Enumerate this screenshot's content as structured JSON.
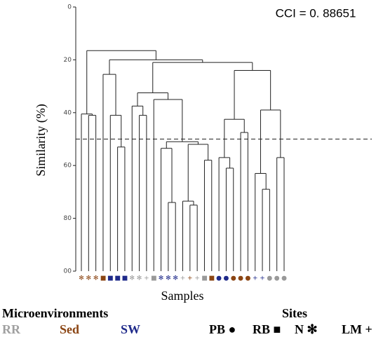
{
  "chart_data": {
    "type": "dendrogram",
    "annotation": "CCI = 0. 88651",
    "y_label": "Similarity (%)",
    "x_label": "Samples",
    "ylim": [
      0,
      100
    ],
    "yticks": [
      0,
      20,
      40,
      60,
      80,
      {
        "value": 100,
        "label": "00"
      }
    ],
    "threshold": 50,
    "tree": {
      "height": 16.5,
      "children": [
        {
          "height": 40.5,
          "children": [
            {
              "symbol": "✻",
              "color": "#8b4513"
            },
            {
              "height": 41,
              "children": [
                {
                  "symbol": "✻",
                  "color": "#8b4513"
                },
                {
                  "symbol": "✻",
                  "color": "#8b4513"
                }
              ]
            }
          ]
        },
        {
          "height": 20,
          "children": [
            {
              "height": 25.5,
              "children": [
                {
                  "symbol": "■",
                  "color": "#8b4513"
                },
                {
                  "height": 41,
                  "children": [
                    {
                      "symbol": "■",
                      "color": "#1f2a8a"
                    },
                    {
                      "height": 53,
                      "children": [
                        {
                          "symbol": "■",
                          "color": "#1f2a8a"
                        },
                        {
                          "symbol": "■",
                          "color": "#1f2a8a"
                        }
                      ]
                    }
                  ]
                }
              ]
            },
            {
              "height": 21,
              "children": [
                {
                  "height": 32.5,
                  "children": [
                    {
                      "height": 37.5,
                      "children": [
                        {
                          "symbol": "✻",
                          "color": "#999999"
                        },
                        {
                          "height": 41,
                          "children": [
                            {
                              "symbol": "✻",
                              "color": "#999999"
                            },
                            {
                              "symbol": "+",
                              "color": "#999999"
                            }
                          ]
                        }
                      ]
                    },
                    {
                      "height": 35,
                      "children": [
                        {
                          "symbol": "■",
                          "color": "#999999"
                        },
                        {
                          "height": 51,
                          "children": [
                            {
                              "height": 53.5,
                              "children": [
                                {
                                  "symbol": "✻",
                                  "color": "#1f2a8a"
                                },
                                {
                                  "height": 74,
                                  "children": [
                                    {
                                      "symbol": "✻",
                                      "color": "#1f2a8a"
                                    },
                                    {
                                      "symbol": "✻",
                                      "color": "#1f2a8a"
                                    }
                                  ]
                                }
                              ]
                            },
                            {
                              "height": 52,
                              "children": [
                                {
                                  "height": 73.5,
                                  "children": [
                                    {
                                      "symbol": "+",
                                      "color": "#999999"
                                    },
                                    {
                                      "height": 75,
                                      "children": [
                                        {
                                          "symbol": "+",
                                          "color": "#8b4513"
                                        },
                                        {
                                          "symbol": "+",
                                          "color": "#999999"
                                        }
                                      ]
                                    }
                                  ]
                                },
                                {
                                  "height": 58,
                                  "children": [
                                    {
                                      "symbol": "■",
                                      "color": "#999999"
                                    },
                                    {
                                      "symbol": "■",
                                      "color": "#8b4513"
                                    }
                                  ]
                                }
                              ]
                            }
                          ]
                        }
                      ]
                    }
                  ]
                },
                {
                  "height": 24,
                  "children": [
                    {
                      "height": 42.5,
                      "children": [
                        {
                          "height": 57,
                          "children": [
                            {
                              "symbol": "●",
                              "color": "#1f2a8a"
                            },
                            {
                              "height": 61,
                              "children": [
                                {
                                  "symbol": "●",
                                  "color": "#1f2a8a"
                                },
                                {
                                  "symbol": "●",
                                  "color": "#8b4513"
                                }
                              ]
                            }
                          ]
                        },
                        {
                          "height": 47.5,
                          "children": [
                            {
                              "symbol": "●",
                              "color": "#8b4513"
                            },
                            {
                              "symbol": "●",
                              "color": "#8b4513"
                            }
                          ]
                        }
                      ]
                    },
                    {
                      "height": 39,
                      "children": [
                        {
                          "height": 63,
                          "children": [
                            {
                              "symbol": "+",
                              "color": "#1f2a8a"
                            },
                            {
                              "height": 69,
                              "children": [
                                {
                                  "symbol": "+",
                                  "color": "#1f2a8a"
                                },
                                {
                                  "symbol": "●",
                                  "color": "#999999"
                                }
                              ]
                            }
                          ]
                        },
                        {
                          "height": 57,
                          "children": [
                            {
                              "symbol": "●",
                              "color": "#999999"
                            },
                            {
                              "symbol": "●",
                              "color": "#999999"
                            }
                          ]
                        }
                      ]
                    }
                  ]
                }
              ]
            }
          ]
        }
      ]
    },
    "legend": {
      "microenvironments": {
        "title": "Microenvironments",
        "items": [
          {
            "label": "RR",
            "color": "#a0a0a0"
          },
          {
            "label": "Sed",
            "color": "#8b4513"
          },
          {
            "label": "SW",
            "color": "#1f2a8a"
          }
        ]
      },
      "sites": {
        "title": "Sites",
        "items": [
          "PB ●",
          "RB ■",
          "N ✻",
          "LM +"
        ]
      }
    }
  }
}
